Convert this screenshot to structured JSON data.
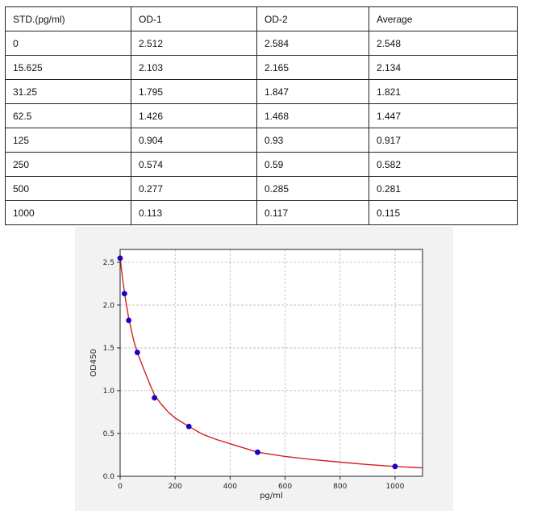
{
  "table": {
    "headers": [
      "STD.(pg/ml)",
      "OD-1",
      "OD-2",
      "Average"
    ],
    "rows": [
      [
        "0",
        "2.512",
        "2.584",
        "2.548"
      ],
      [
        "15.625",
        "2.103",
        "2.165",
        "2.134"
      ],
      [
        "31.25",
        "1.795",
        "1.847",
        "1.821"
      ],
      [
        "62.5",
        "1.426",
        "1.468",
        "1.447"
      ],
      [
        "125",
        "0.904",
        "0.93",
        "0.917"
      ],
      [
        "250",
        "0.574",
        "0.59",
        "0.582"
      ],
      [
        "500",
        "0.277",
        "0.285",
        "0.281"
      ],
      [
        "1000",
        "0.113",
        "0.117",
        "0.115"
      ]
    ]
  },
  "chart_data": {
    "type": "scatter",
    "title": "",
    "xlabel": "pg/ml",
    "ylabel": "OD450",
    "xlim": [
      0,
      1100
    ],
    "ylim": [
      0,
      2.65
    ],
    "xticks": [
      "0",
      "200",
      "400",
      "600",
      "800",
      "1000"
    ],
    "xtick_values": [
      0,
      200,
      400,
      600,
      800,
      1000
    ],
    "yticks": [
      "0.0",
      "0.5",
      "1.0",
      "1.5",
      "2.0",
      "2.5"
    ],
    "ytick_values": [
      0,
      0.5,
      1.0,
      1.5,
      2.0,
      2.5
    ],
    "grid": true,
    "series": [
      {
        "kind": "points",
        "x": [
          0,
          15.625,
          31.25,
          62.5,
          125,
          250,
          500,
          1000
        ],
        "y": [
          2.548,
          2.134,
          1.821,
          1.447,
          0.917,
          0.582,
          0.281,
          0.115
        ],
        "color": "#1a00cc"
      },
      {
        "kind": "fit-curve",
        "x": [
          0,
          10,
          20,
          30,
          40,
          50,
          62.5,
          75,
          90,
          110,
          125,
          150,
          175,
          200,
          250,
          300,
          350,
          400,
          500,
          600,
          700,
          800,
          900,
          1000,
          1100
        ],
        "y": [
          2.548,
          2.28,
          2.06,
          1.87,
          1.72,
          1.58,
          1.447,
          1.34,
          1.22,
          1.06,
          0.95,
          0.84,
          0.75,
          0.68,
          0.582,
          0.49,
          0.43,
          0.38,
          0.281,
          0.232,
          0.195,
          0.165,
          0.138,
          0.115,
          0.098
        ],
        "color": "#d62020"
      }
    ]
  }
}
